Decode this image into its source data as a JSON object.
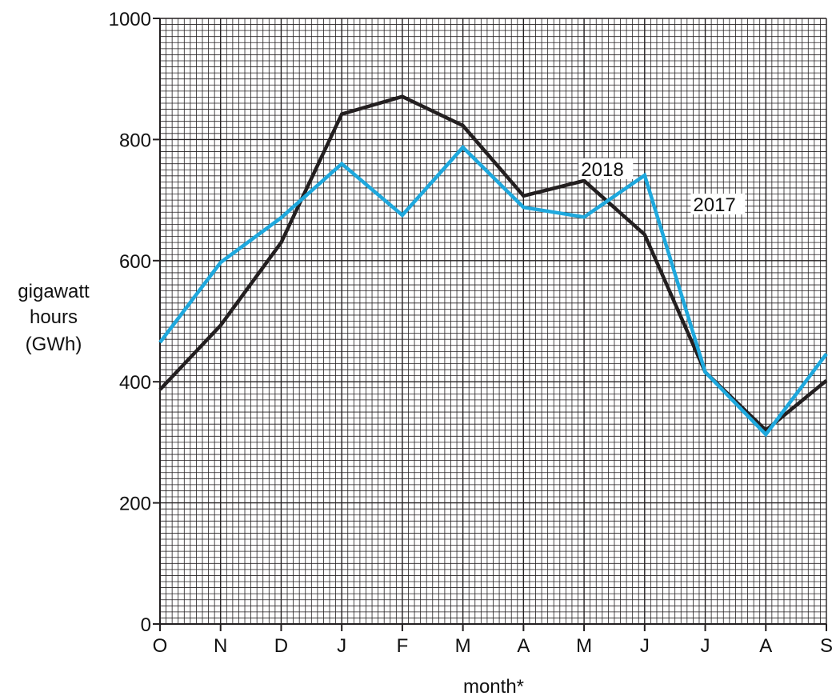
{
  "chart_data": {
    "type": "line",
    "title": "",
    "xlabel": "month*",
    "ylabel": [
      "gigawatt",
      "hours",
      "(GWh)"
    ],
    "categories": [
      "O",
      "N",
      "D",
      "J",
      "F",
      "M",
      "A",
      "M",
      "J",
      "J",
      "A",
      "S"
    ],
    "ylim": [
      0,
      1000
    ],
    "yticks": [
      0,
      200,
      400,
      600,
      800,
      1000
    ],
    "grid": true,
    "series": [
      {
        "name": "2018",
        "color": "#231f20",
        "values": [
          387,
          493,
          630,
          842,
          871,
          823,
          707,
          732,
          643,
          416,
          320,
          402
        ]
      },
      {
        "name": "2017",
        "color": "#1ea8dd",
        "values": [
          465,
          597,
          671,
          760,
          675,
          787,
          688,
          672,
          741,
          416,
          313,
          446
        ]
      }
    ]
  }
}
